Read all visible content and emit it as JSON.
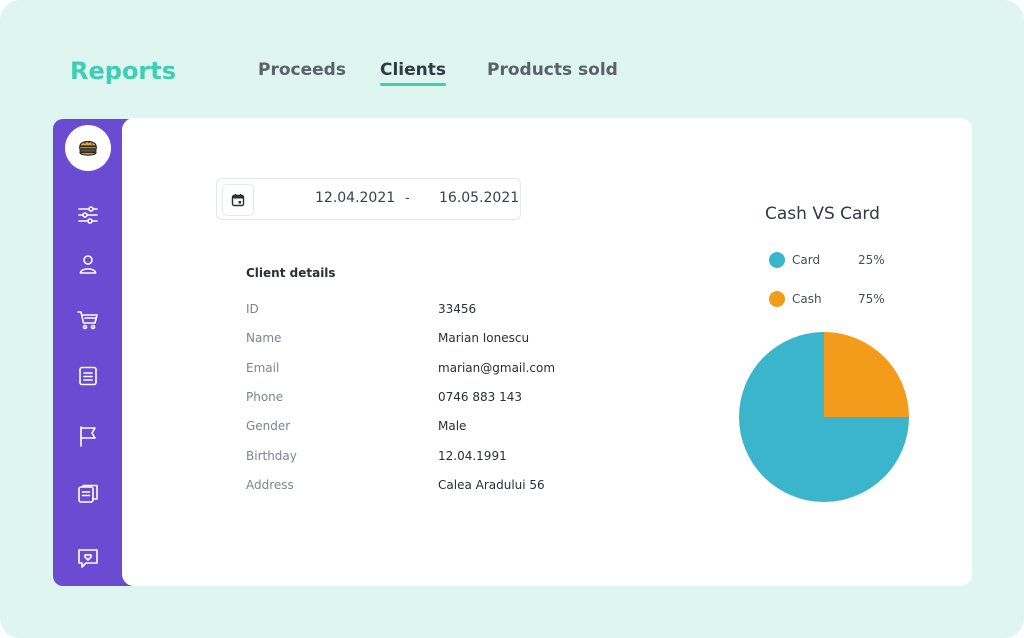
{
  "app": {
    "title": "Reports"
  },
  "tabs": [
    {
      "label": "Proceeds",
      "active": false
    },
    {
      "label": "Clients",
      "active": true
    },
    {
      "label": "Products sold",
      "active": false
    }
  ],
  "sidebar": {
    "logo": "burger-icon",
    "items": [
      {
        "icon": "sliders-icon"
      },
      {
        "icon": "user-icon"
      },
      {
        "icon": "cart-icon"
      },
      {
        "icon": "document-icon"
      },
      {
        "icon": "flag-icon"
      },
      {
        "icon": "receipts-icon"
      },
      {
        "icon": "heart-chat-icon"
      }
    ]
  },
  "date_range": {
    "start": "12.04.2021",
    "separator": "-",
    "end": "16.05.2021"
  },
  "client_details": {
    "title": "Client details",
    "rows": [
      {
        "label": "ID",
        "value": "33456"
      },
      {
        "label": "Name",
        "value": "Marian Ionescu"
      },
      {
        "label": "Email",
        "value": "marian@gmail.com"
      },
      {
        "label": "Phone",
        "value": "0746 883 143"
      },
      {
        "label": "Gender",
        "value": "Male"
      },
      {
        "label": "Birthday",
        "value": "12.04.1991"
      },
      {
        "label": "Address",
        "value": "Calea Aradului 56"
      }
    ]
  },
  "colors": {
    "accent": "#3ecfb3",
    "sidebar": "#6a4bd1",
    "card": "#3bb5cc",
    "cash": "#f39c1b"
  },
  "chart_data": {
    "type": "pie",
    "title": "Cash VS Card",
    "slices": [
      {
        "name": "Card",
        "value": 25,
        "label": "25%",
        "color": "#3bb5cc"
      },
      {
        "name": "Cash",
        "value": 75,
        "label": "75%",
        "color": "#f39c1b"
      }
    ]
  }
}
